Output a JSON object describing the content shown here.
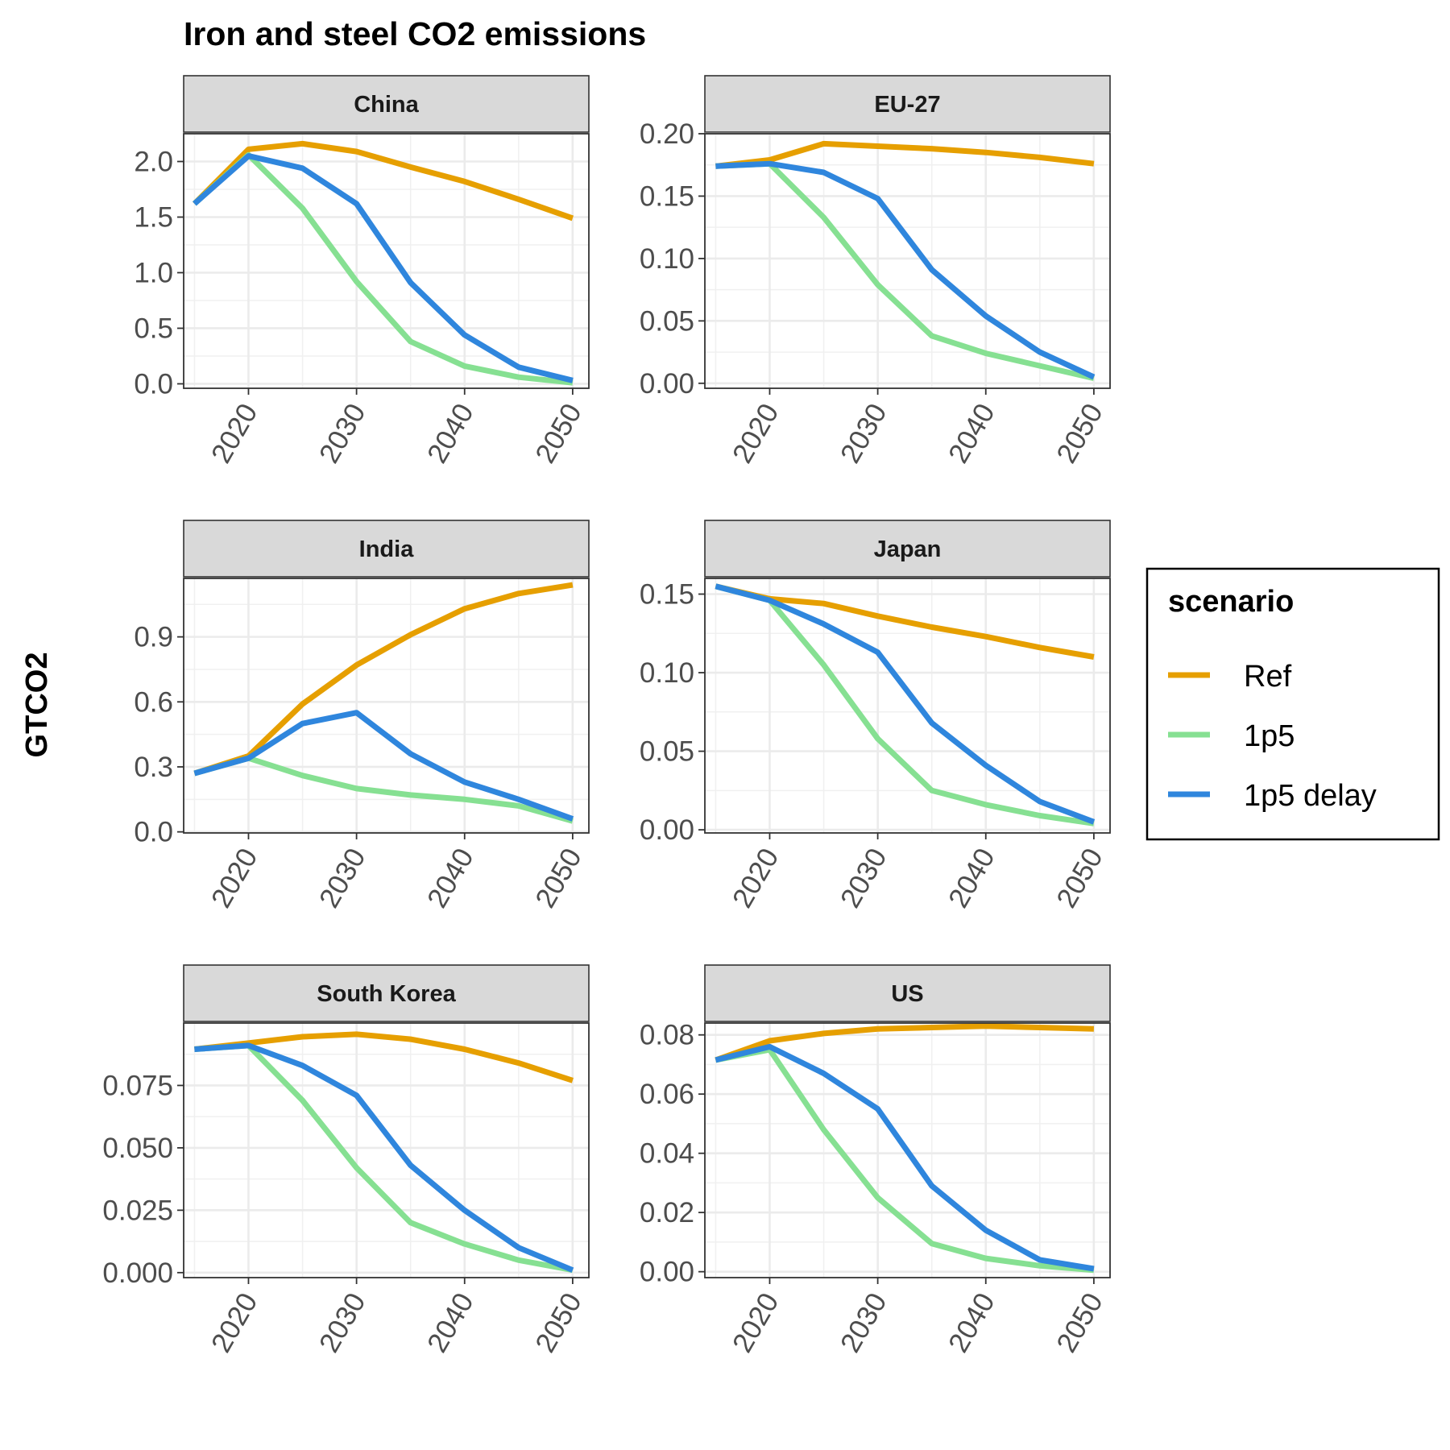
{
  "chart_data": {
    "type": "line",
    "title": "Iron and steel CO2 emissions",
    "ylabel": "GTCO2",
    "xlabel": "",
    "x": [
      2015,
      2020,
      2025,
      2030,
      2035,
      2040,
      2045,
      2050
    ],
    "xticks": [
      2020,
      2030,
      2040,
      2050
    ],
    "xticklabels": [
      "2020",
      "2030",
      "2040",
      "2050"
    ],
    "xlim": [
      2014,
      2051.5
    ],
    "grid": true,
    "legend": {
      "title": "scenario",
      "position": "right",
      "entries": [
        "Ref",
        "1p5",
        "1p5 delay"
      ]
    },
    "series_colors": {
      "Ref": "#E69F00",
      "1p5": "#86E092",
      "1p5 delay": "#2F86DD"
    },
    "panels": [
      {
        "name": "China",
        "ylim": [
          -0.04,
          2.25
        ],
        "yticks": [
          0,
          0.5,
          1,
          1.5,
          2
        ],
        "yticklabels": [
          "0.0",
          "0.5",
          "1.0",
          "1.5",
          "2.0"
        ],
        "series": [
          {
            "name": "Ref",
            "values": [
              1.62,
              2.11,
              2.16,
              2.09,
              1.95,
              1.82,
              1.66,
              1.49
            ]
          },
          {
            "name": "1p5",
            "values": [
              1.62,
              2.06,
              1.58,
              0.92,
              0.38,
              0.16,
              0.06,
              0.01
            ]
          },
          {
            "name": "1p5 delay",
            "values": [
              1.62,
              2.05,
              1.94,
              1.62,
              0.91,
              0.44,
              0.15,
              0.03
            ]
          }
        ]
      },
      {
        "name": "EU-27",
        "ylim": [
          -0.004,
          0.2
        ],
        "yticks": [
          0,
          0.05,
          0.1,
          0.15,
          0.2
        ],
        "yticklabels": [
          "0.00",
          "0.05",
          "0.10",
          "0.15",
          "0.20"
        ],
        "series": [
          {
            "name": "Ref",
            "values": [
              0.174,
              0.179,
              0.192,
              0.19,
              0.188,
              0.185,
              0.181,
              0.176
            ]
          },
          {
            "name": "1p5",
            "values": [
              0.174,
              0.176,
              0.133,
              0.079,
              0.038,
              0.024,
              0.014,
              0.004
            ]
          },
          {
            "name": "1p5 delay",
            "values": [
              0.174,
              0.176,
              0.169,
              0.148,
              0.091,
              0.054,
              0.025,
              0.005
            ]
          }
        ]
      },
      {
        "name": "India",
        "ylim": [
          -0.005,
          1.17
        ],
        "yticks": [
          0,
          0.3,
          0.6,
          0.9
        ],
        "yticklabels": [
          "0.0",
          "0.3",
          "0.6",
          "0.9"
        ],
        "series": [
          {
            "name": "Ref",
            "values": [
              0.27,
              0.35,
              0.59,
              0.77,
              0.91,
              1.03,
              1.1,
              1.14
            ]
          },
          {
            "name": "1p5",
            "values": [
              0.27,
              0.34,
              0.26,
              0.2,
              0.17,
              0.15,
              0.12,
              0.05
            ]
          },
          {
            "name": "1p5 delay",
            "values": [
              0.27,
              0.34,
              0.5,
              0.55,
              0.36,
              0.23,
              0.15,
              0.06
            ]
          }
        ]
      },
      {
        "name": "Japan",
        "ylim": [
          -0.002,
          0.16
        ],
        "yticks": [
          0,
          0.05,
          0.1,
          0.15
        ],
        "yticklabels": [
          "0.00",
          "0.05",
          "0.10",
          "0.15"
        ],
        "series": [
          {
            "name": "Ref",
            "values": [
              0.155,
              0.147,
              0.144,
              0.136,
              0.129,
              0.123,
              0.116,
              0.11
            ]
          },
          {
            "name": "1p5",
            "values": [
              0.155,
              0.146,
              0.105,
              0.058,
              0.025,
              0.016,
              0.009,
              0.004
            ]
          },
          {
            "name": "1p5 delay",
            "values": [
              0.155,
              0.146,
              0.131,
              0.113,
              0.068,
              0.041,
              0.018,
              0.005
            ]
          }
        ]
      },
      {
        "name": "South Korea",
        "ylim": [
          -0.002,
          0.1
        ],
        "yticks": [
          0,
          0.025,
          0.05,
          0.075
        ],
        "yticklabels": [
          "0.000",
          "0.025",
          "0.050",
          "0.075"
        ],
        "series": [
          {
            "name": "Ref",
            "values": [
              0.0895,
              0.092,
              0.0945,
              0.0955,
              0.0935,
              0.0895,
              0.084,
              0.077
            ]
          },
          {
            "name": "1p5",
            "values": [
              0.0895,
              0.091,
              0.069,
              0.042,
              0.02,
              0.0115,
              0.005,
              0.001
            ]
          },
          {
            "name": "1p5 delay",
            "values": [
              0.0895,
              0.091,
              0.083,
              0.071,
              0.043,
              0.025,
              0.01,
              0.001
            ]
          }
        ]
      },
      {
        "name": "US",
        "ylim": [
          -0.002,
          0.084
        ],
        "yticks": [
          0,
          0.02,
          0.04,
          0.06,
          0.08
        ],
        "yticklabels": [
          "0.00",
          "0.02",
          "0.04",
          "0.06",
          "0.08"
        ],
        "series": [
          {
            "name": "Ref",
            "values": [
              0.0715,
              0.078,
              0.0805,
              0.082,
              0.0825,
              0.083,
              0.0825,
              0.082
            ]
          },
          {
            "name": "1p5",
            "values": [
              0.0715,
              0.075,
              0.048,
              0.025,
              0.0095,
              0.0045,
              0.002,
              0.0005
            ]
          },
          {
            "name": "1p5 delay",
            "values": [
              0.0715,
              0.076,
              0.067,
              0.055,
              0.029,
              0.014,
              0.004,
              0.001
            ]
          }
        ]
      }
    ]
  }
}
